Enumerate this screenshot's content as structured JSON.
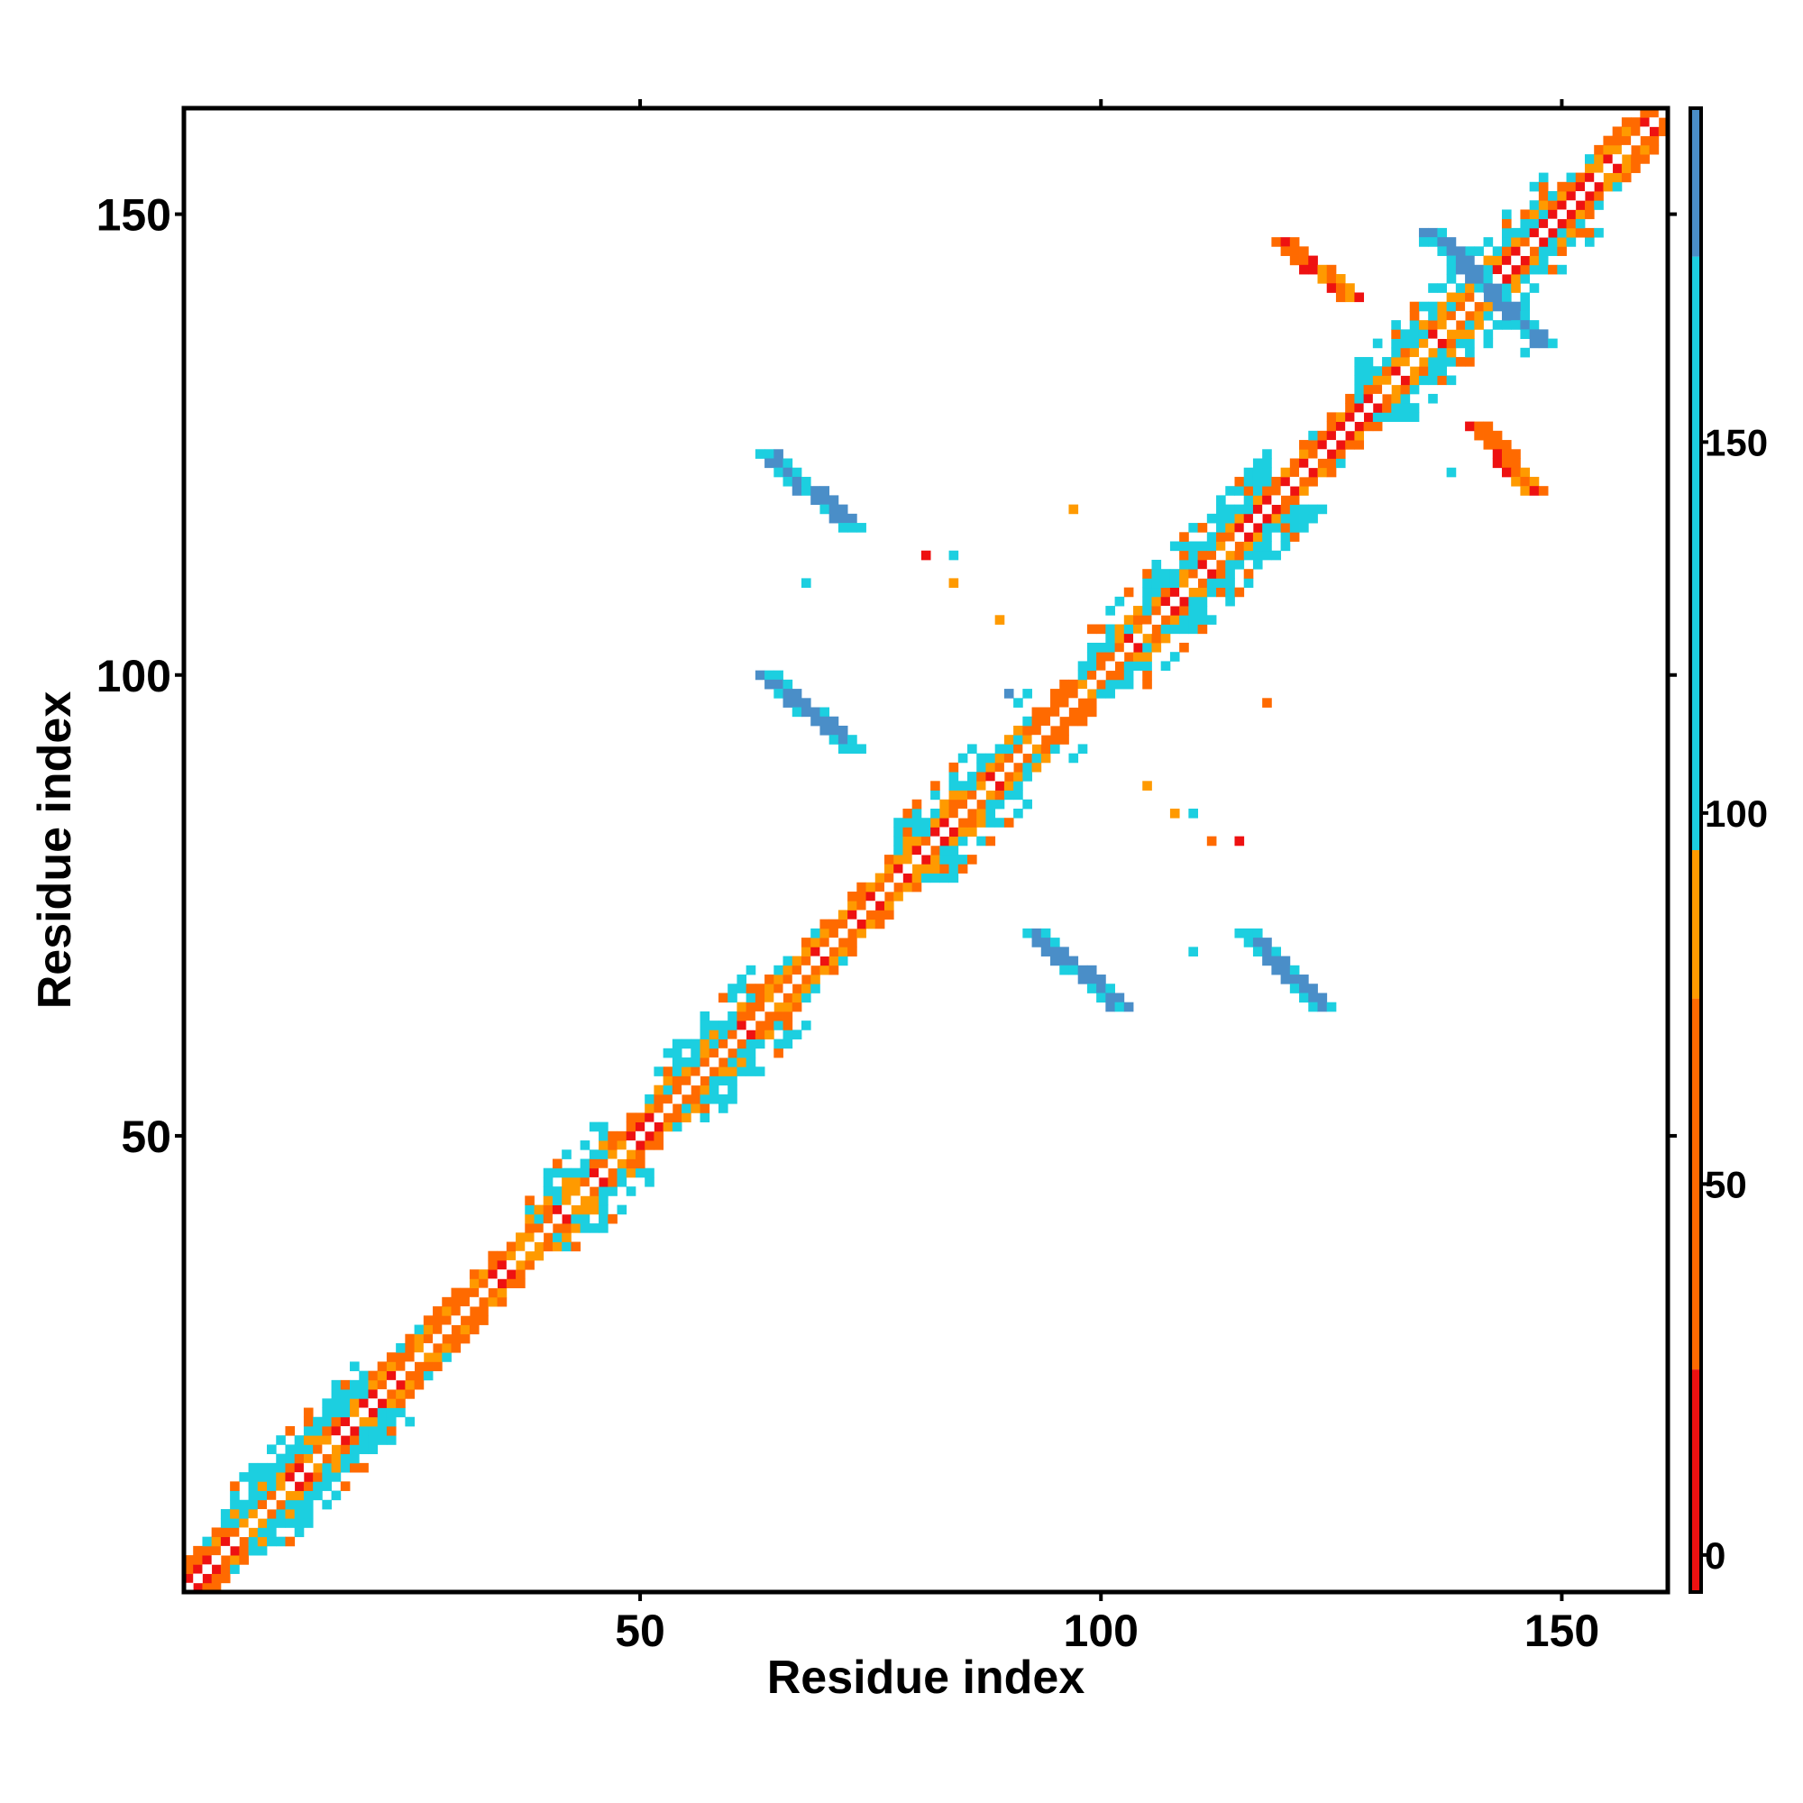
{
  "chart_data": {
    "type": "heatmap",
    "title": "",
    "xlabel": "Residue index",
    "ylabel": "Residue index",
    "xlim": [
      1,
      161
    ],
    "ylim": [
      1,
      161
    ],
    "x_ticks": [
      50,
      100,
      150
    ],
    "y_ticks": [
      50,
      100,
      150
    ],
    "colorbar": {
      "ticks": [
        0,
        50,
        100,
        150
      ],
      "range": [
        -5,
        195
      ],
      "bands": [
        {
          "from": -5,
          "to": 25,
          "color": "#ee1111"
        },
        {
          "from": 25,
          "to": 75,
          "color": "#ff6a00"
        },
        {
          "from": 75,
          "to": 95,
          "color": "#ff9a00"
        },
        {
          "from": 95,
          "to": 175,
          "color": "#1ccfe0"
        },
        {
          "from": 175,
          "to": 210,
          "color": "#4a8ec8"
        },
        {
          "from": 210,
          "to": 220,
          "color": "#ffffff"
        }
      ]
    },
    "colors": {
      "red": "#ee1111",
      "orange_red": "#ff6a00",
      "orange": "#ff9a00",
      "cyan": "#1ccfe0",
      "steel_blue": "#4a8ec8"
    },
    "diagonal_band": {
      "from": 1,
      "to": 161,
      "half_width": 3
    },
    "helix_segments": [
      [
        68,
        75,
        "red"
      ],
      [
        120,
        125,
        "red"
      ],
      [
        140,
        150,
        "red"
      ]
    ],
    "strand_regions": [
      [
        5,
        20
      ],
      [
        38,
        46
      ],
      [
        52,
        62
      ],
      [
        78,
        92
      ],
      [
        98,
        118
      ],
      [
        128,
        148
      ]
    ],
    "off_diagonal_patches": [
      {
        "x": [
          64,
          73
        ],
        "y": [
          116,
          124
        ],
        "color": "steel_blue"
      },
      {
        "x": [
          64,
          73
        ],
        "y": [
          92,
          100
        ],
        "color": "steel_blue"
      },
      {
        "x": [
          93,
          102
        ],
        "y": [
          64,
          72
        ],
        "color": "steel_blue"
      },
      {
        "x": [
          116,
          124
        ],
        "y": [
          64,
          72
        ],
        "color": "steel_blue"
      },
      {
        "x": [
          136,
          148
        ],
        "y": [
          136,
          148
        ],
        "color": "steel_blue"
      },
      {
        "x": [
          120,
          127
        ],
        "y": [
          141,
          147
        ],
        "color": "orange_red"
      },
      {
        "x": [
          141,
          147
        ],
        "y": [
          120,
          127
        ],
        "color": "orange_red"
      }
    ],
    "sparse_points": [
      [
        81,
        113,
        "red"
      ],
      [
        84,
        110,
        "orange"
      ],
      [
        84,
        113,
        "cyan"
      ],
      [
        97,
        118,
        "orange"
      ],
      [
        89,
        106,
        "orange"
      ],
      [
        68,
        110,
        "cyan"
      ],
      [
        118,
        97,
        "orange_red"
      ],
      [
        105,
        88,
        "orange"
      ],
      [
        108,
        85,
        "orange"
      ],
      [
        110,
        85,
        "cyan"
      ],
      [
        112,
        82,
        "orange_red"
      ],
      [
        115,
        82,
        "red"
      ],
      [
        110,
        70,
        "cyan"
      ],
      [
        90,
        98,
        "steel_blue"
      ],
      [
        89,
        84,
        "cyan"
      ],
      [
        135,
        147,
        "cyan"
      ],
      [
        146,
        135,
        "cyan"
      ],
      [
        138,
        122,
        "cyan"
      ]
    ]
  }
}
